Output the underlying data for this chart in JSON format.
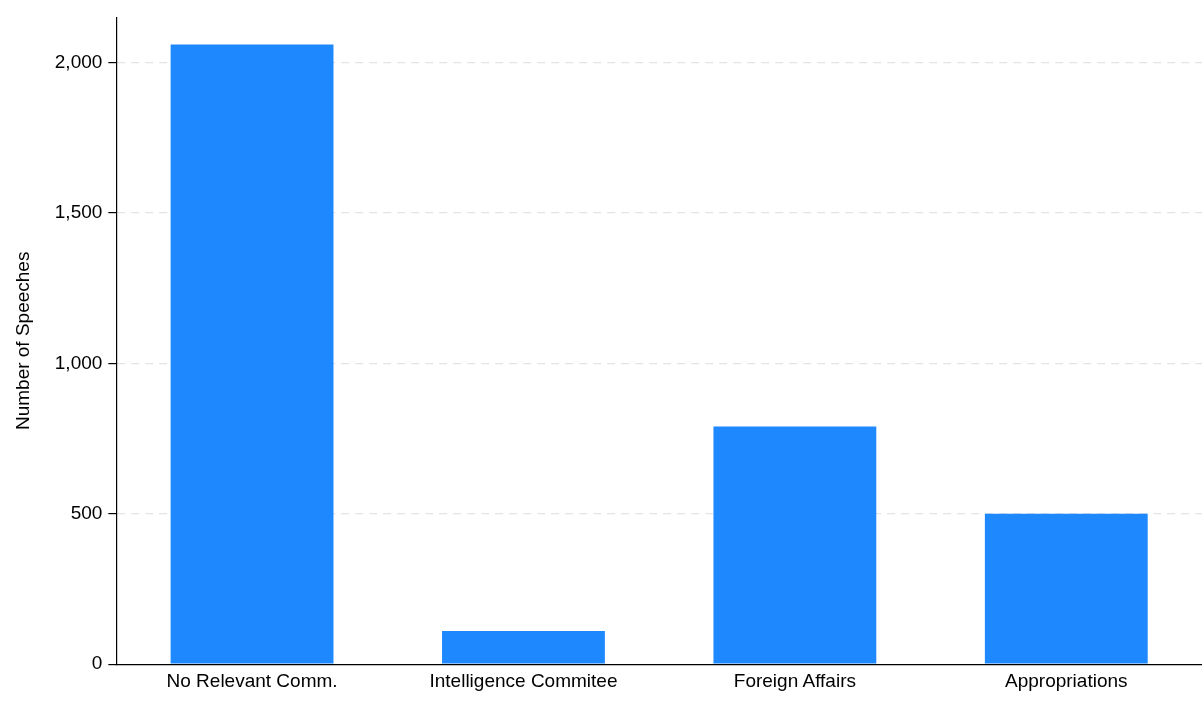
{
  "chart_data": {
    "type": "bar",
    "ylabel": "Number of Speeches",
    "categories": [
      "No Relevant Comm.",
      "Intelligence Commitee",
      "Foreign Affairs",
      "Appropriations"
    ],
    "values": [
      2060,
      110,
      790,
      500
    ],
    "color": "#1e88ff",
    "ylim": [
      0,
      2150
    ],
    "yticks": [
      {
        "value": 0,
        "label": "0"
      },
      {
        "value": 500,
        "label": "500"
      },
      {
        "value": 1000,
        "label": "1,000"
      },
      {
        "value": 1500,
        "label": "1,500"
      },
      {
        "value": 2000,
        "label": "2,000"
      }
    ],
    "grid": "y",
    "legend": false
  }
}
